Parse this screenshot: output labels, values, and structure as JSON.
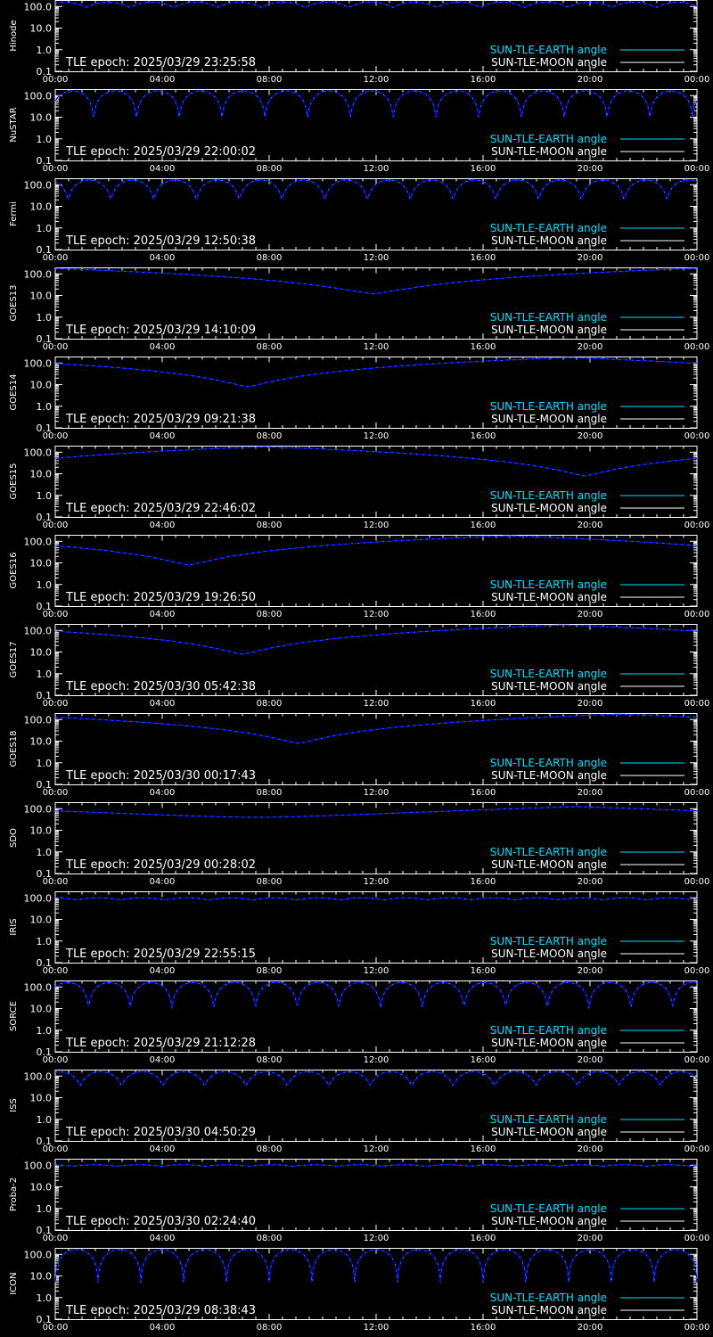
{
  "colors": {
    "background": "#000000",
    "axis": "#ffffff",
    "earth": "#00e0ff",
    "moon": "#ffffff",
    "curve": "#0000ff"
  },
  "legend": {
    "earth_label": "SUN-TLE-EARTH angle",
    "moon_label": "SUN-TLE-MOON angle"
  },
  "shared_axes": {
    "x_tick_labels": [
      "00:00",
      "04:00",
      "08:00",
      "12:00",
      "16:00",
      "20:00",
      "00:00"
    ],
    "y_tick_labels": [
      "0.1",
      "1.0",
      "10.0",
      "100.0"
    ],
    "y_scale": "log",
    "ylim": [
      0.1,
      200
    ],
    "xlim_hours": [
      0,
      24
    ]
  },
  "chart_data": [
    {
      "type": "line",
      "ylabel": "Hinode",
      "epoch_text": "TLE epoch: 2025/03/29 23:25:58",
      "series": [
        {
          "name": "SUN-TLE-EARTH angle",
          "shape": "oscillation",
          "period_hours": 1.64,
          "max": 160,
          "min": 90,
          "phase": 0.3
        }
      ]
    },
    {
      "type": "line",
      "ylabel": "NuSTAR",
      "epoch_text": "TLE epoch: 2025/03/29 22:00:02",
      "series": [
        {
          "name": "SUN-TLE-EARTH angle",
          "shape": "oscillation",
          "period_hours": 1.6,
          "max": 165,
          "min": 8,
          "phase": 0.1
        }
      ]
    },
    {
      "type": "line",
      "ylabel": "Fermi",
      "epoch_text": "TLE epoch: 2025/03/29 12:50:38",
      "series": [
        {
          "name": "SUN-TLE-EARTH angle",
          "shape": "oscillation",
          "period_hours": 1.6,
          "max": 165,
          "min": 18,
          "phase": 0.7
        }
      ]
    },
    {
      "type": "line",
      "ylabel": "GOES13",
      "epoch_text": "TLE epoch: 2025/03/29 14:10:09",
      "series": [
        {
          "name": "SUN-TLE-EARTH angle",
          "shape": "geo",
          "min_hour": 11.9,
          "min": 12,
          "max": 178
        }
      ]
    },
    {
      "type": "line",
      "ylabel": "GOES14",
      "epoch_text": "TLE epoch: 2025/03/29 09:21:38",
      "series": [
        {
          "name": "SUN-TLE-EARTH angle",
          "shape": "geo",
          "min_hour": 7.2,
          "min": 8,
          "max": 178
        }
      ]
    },
    {
      "type": "line",
      "ylabel": "GOES15",
      "epoch_text": "TLE epoch: 2025/03/29 22:46:02",
      "series": [
        {
          "name": "SUN-TLE-EARTH angle",
          "shape": "geo",
          "min_hour": 19.8,
          "min": 8,
          "max": 178
        }
      ]
    },
    {
      "type": "line",
      "ylabel": "GOES16",
      "epoch_text": "TLE epoch: 2025/03/29 19:26:50",
      "series": [
        {
          "name": "SUN-TLE-EARTH angle",
          "shape": "geo",
          "min_hour": 5.0,
          "min": 8,
          "max": 178
        }
      ]
    },
    {
      "type": "line",
      "ylabel": "GOES17",
      "epoch_text": "TLE epoch: 2025/03/30 05:42:38",
      "series": [
        {
          "name": "SUN-TLE-EARTH angle",
          "shape": "geo",
          "min_hour": 7.0,
          "min": 8,
          "max": 178
        }
      ]
    },
    {
      "type": "line",
      "ylabel": "GOES18",
      "epoch_text": "TLE epoch: 2025/03/30 00:17:43",
      "series": [
        {
          "name": "SUN-TLE-EARTH angle",
          "shape": "geo",
          "min_hour": 9.1,
          "min": 8,
          "max": 178
        }
      ]
    },
    {
      "type": "line",
      "ylabel": "SDO",
      "epoch_text": "TLE epoch: 2025/03/29 00:28:02",
      "series": [
        {
          "name": "SUN-TLE-EARTH angle",
          "shape": "sdo",
          "min_hour": 7.5,
          "min": 40,
          "max": 125
        }
      ]
    },
    {
      "type": "line",
      "ylabel": "IRIS",
      "epoch_text": "TLE epoch: 2025/03/29 22:55:15",
      "series": [
        {
          "name": "SUN-TLE-EARTH angle",
          "shape": "oscillation",
          "period_hours": 1.64,
          "max": 100,
          "min": 80,
          "phase": 0.5
        }
      ]
    },
    {
      "type": "line",
      "ylabel": "SORCE",
      "epoch_text": "TLE epoch: 2025/03/29 21:12:28",
      "series": [
        {
          "name": "SUN-TLE-EARTH angle",
          "shape": "oscillation",
          "period_hours": 1.56,
          "max": 160,
          "min": 10,
          "phase": 0.2
        }
      ]
    },
    {
      "type": "line",
      "ylabel": "ISS",
      "epoch_text": "TLE epoch: 2025/03/30 04:50:29",
      "series": [
        {
          "name": "SUN-TLE-EARTH angle",
          "shape": "oscillation",
          "period_hours": 1.55,
          "max": 160,
          "min": 35,
          "phase": 0.4
        }
      ]
    },
    {
      "type": "line",
      "ylabel": "Proba-2",
      "epoch_text": "TLE epoch: 2025/03/30 02:24:40",
      "series": [
        {
          "name": "SUN-TLE-EARTH angle",
          "shape": "oscillation",
          "period_hours": 1.65,
          "max": 105,
          "min": 90,
          "phase": 0.6
        }
      ]
    },
    {
      "type": "line",
      "ylabel": "ICON",
      "epoch_text": "TLE epoch: 2025/03/29 08:38:43",
      "series": [
        {
          "name": "SUN-TLE-EARTH angle",
          "shape": "oscillation",
          "period_hours": 1.6,
          "max": 165,
          "min": 5,
          "phase": 0.0
        }
      ]
    }
  ]
}
